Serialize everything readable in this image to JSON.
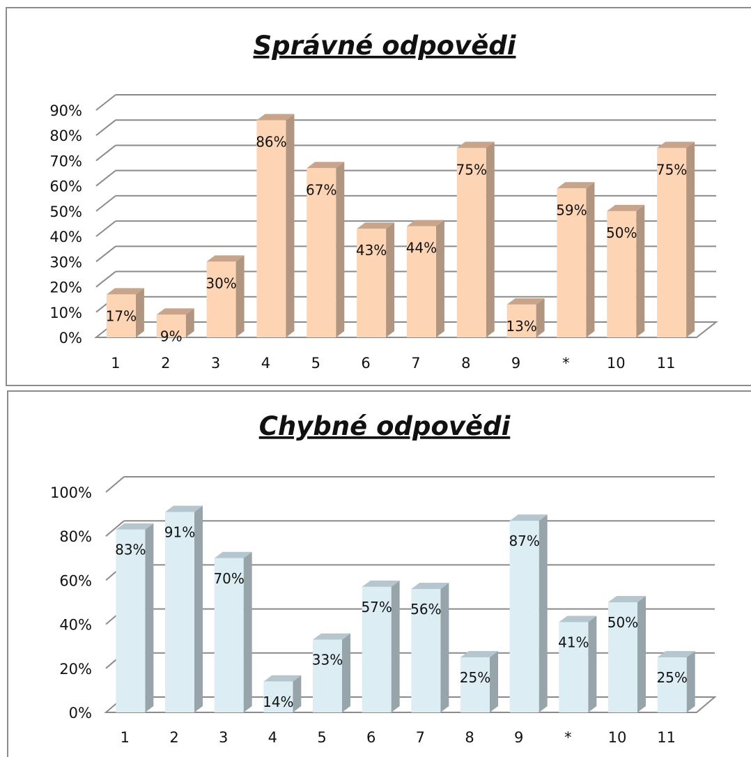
{
  "chart_data": [
    {
      "type": "bar",
      "title": "Správné odpovědi",
      "categories": [
        "1",
        "2",
        "3",
        "4",
        "5",
        "6",
        "7",
        "8",
        "9",
        "*",
        "10",
        "11"
      ],
      "values": [
        17,
        9,
        30,
        86,
        67,
        43,
        44,
        75,
        13,
        59,
        50,
        75
      ],
      "data_labels": [
        "17%",
        "9%",
        "30%",
        "86%",
        "67%",
        "43%",
        "44%",
        "75%",
        "13%",
        "59%",
        "50%",
        "75%"
      ],
      "ylim": [
        0,
        90
      ],
      "yticks": [
        "0%",
        "10%",
        "20%",
        "30%",
        "40%",
        "50%",
        "60%",
        "70%",
        "80%",
        "90%"
      ],
      "xlabel": "",
      "ylabel": "",
      "grid": true,
      "legend": "none",
      "colors": {
        "front": "#fdd5b4",
        "side": "#b09580",
        "top": "#c8a48a"
      }
    },
    {
      "type": "bar",
      "title": "Chybné odpovědi",
      "categories": [
        "1",
        "2",
        "3",
        "4",
        "5",
        "6",
        "7",
        "8",
        "9",
        "*",
        "10",
        "11"
      ],
      "values": [
        83,
        91,
        70,
        14,
        33,
        57,
        56,
        25,
        87,
        41,
        50,
        25
      ],
      "data_labels": [
        "83%",
        "91%",
        "70%",
        "14%",
        "33%",
        "57%",
        "56%",
        "25%",
        "87%",
        "41%",
        "50%",
        "25%"
      ],
      "ylim": [
        0,
        100
      ],
      "yticks": [
        "0%",
        "20%",
        "40%",
        "60%",
        "80%",
        "100%"
      ],
      "xlabel": "",
      "ylabel": "",
      "grid": true,
      "legend": "none",
      "colors": {
        "front": "#dcedf4",
        "side": "#97a4aa",
        "top": "#b6c6ce"
      }
    }
  ]
}
